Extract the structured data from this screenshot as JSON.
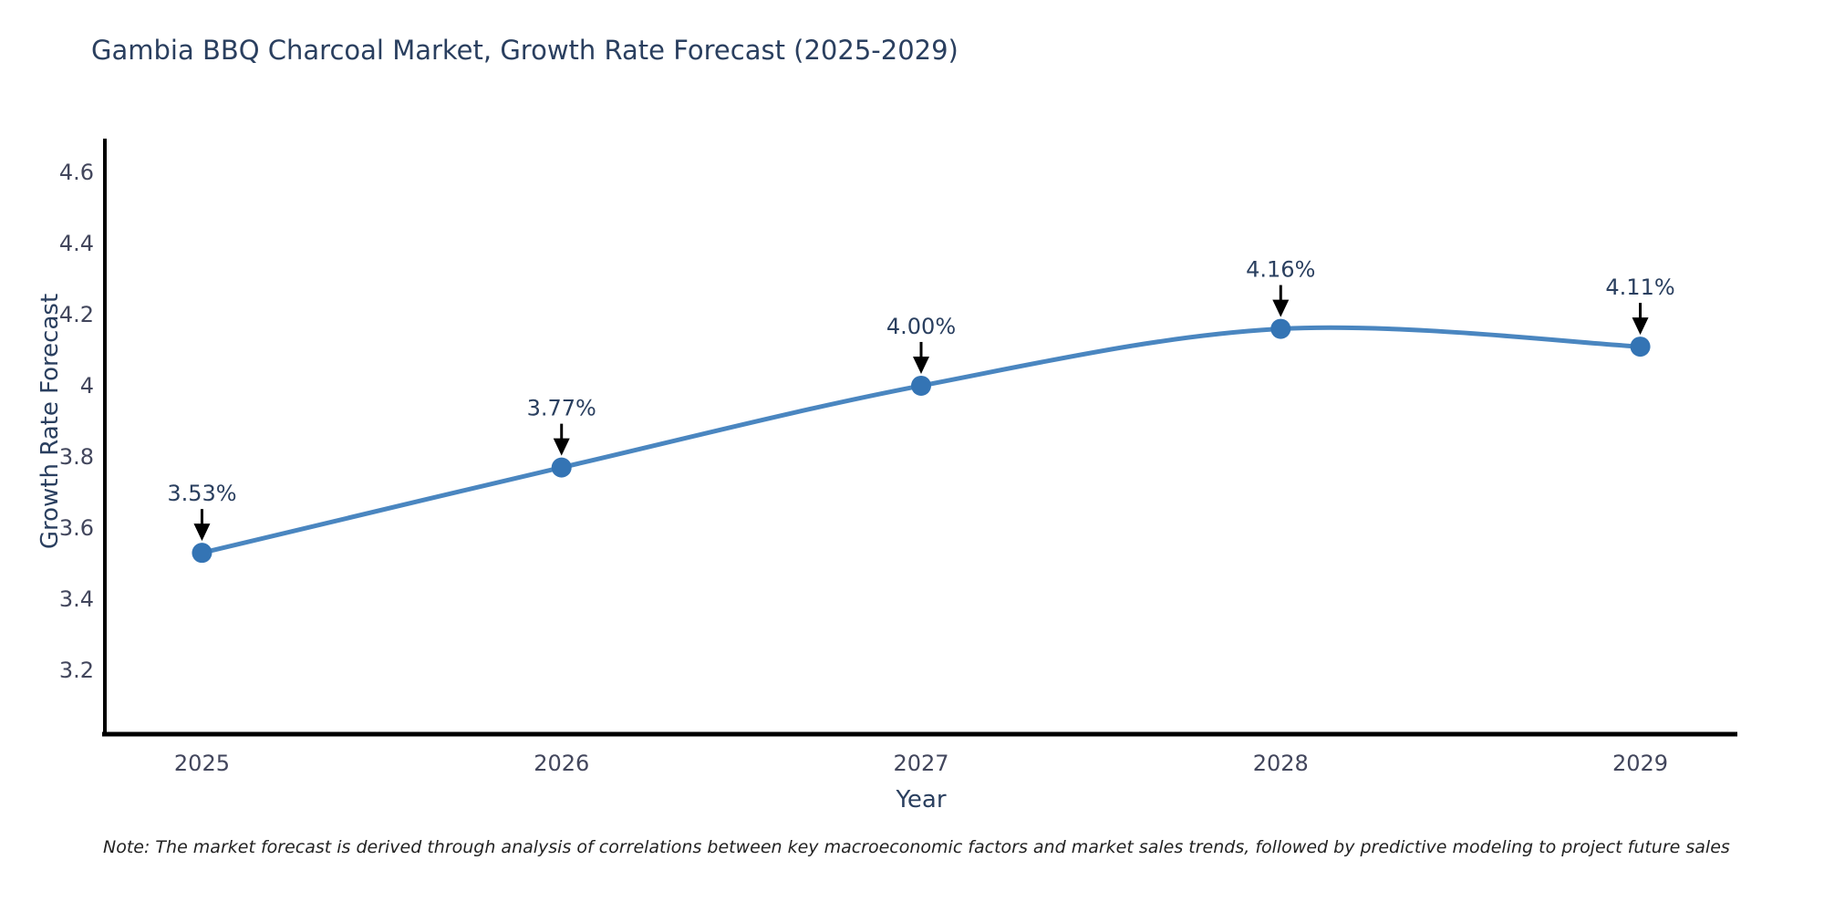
{
  "page": {
    "background": "#ffffff"
  },
  "chart_data": {
    "type": "line",
    "title": "Gambia BBQ Charcoal Market, Growth Rate Forecast (2025-2029)",
    "xlabel": "Year",
    "ylabel": "Growth Rate Forecast",
    "x": [
      2025,
      2026,
      2027,
      2028,
      2029
    ],
    "x_tick_labels": [
      "2025",
      "2026",
      "2027",
      "2028",
      "2029"
    ],
    "values": [
      3.53,
      3.77,
      4.0,
      4.16,
      4.11
    ],
    "point_labels": [
      "3.53%",
      "3.77%",
      "4.00%",
      "4.16%",
      "4.11%"
    ],
    "y_ticks": [
      3.2,
      3.4,
      3.6,
      3.8,
      4,
      4.2,
      4.4,
      4.6
    ],
    "y_tick_labels": [
      "3.2",
      "3.4",
      "3.6",
      "3.8",
      "4",
      "4.2",
      "4.4",
      "4.6"
    ],
    "xlim": [
      2024.73,
      2029.27
    ],
    "ylim": [
      3.02,
      4.695
    ],
    "grid": false,
    "legend": "none",
    "line_shape": "spline",
    "annotation_style": "value label with downward arrow to marker",
    "colors": {
      "line": "#4a86c0",
      "marker": "#3474b4",
      "axis": "#000000",
      "text": "#2a3f5f",
      "tick_text": "#42465c",
      "annotation_arrow": "#000000",
      "note_text": "#222222"
    }
  },
  "note": "Note: The market forecast is derived through analysis of correlations between key macroeconomic factors and market sales trends, followed by predictive modeling to project future sales"
}
